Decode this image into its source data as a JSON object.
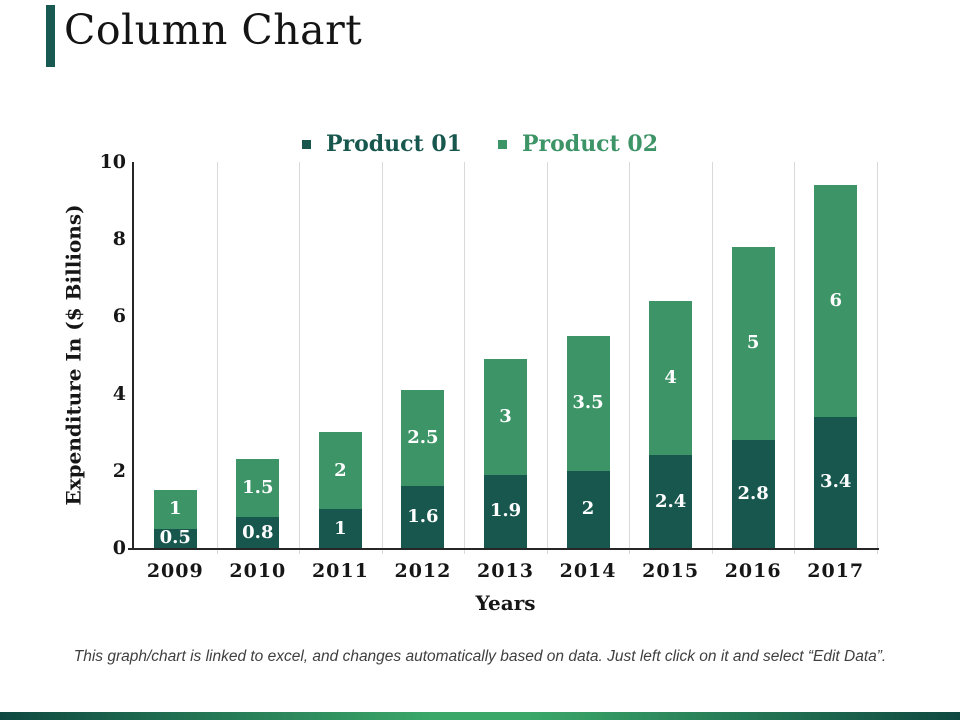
{
  "title": "Column Chart",
  "accent_color": "#185a52",
  "chart_data": {
    "type": "bar",
    "stacked": true,
    "title": "",
    "categories": [
      "2009",
      "2010",
      "2011",
      "2012",
      "2013",
      "2014",
      "2015",
      "2016",
      "2017"
    ],
    "series": [
      {
        "name": "Product 01",
        "color": "#17574e",
        "values": [
          0.5,
          0.8,
          1,
          1.6,
          1.9,
          2,
          2.4,
          2.8,
          3.4
        ]
      },
      {
        "name": "Product 02",
        "color": "#3c9467",
        "values": [
          1,
          1.5,
          2,
          2.5,
          3,
          3.5,
          4,
          5,
          6
        ]
      }
    ],
    "xlabel": "Years",
    "ylabel": "Expenditure In ($ Billions)",
    "ylim": [
      0,
      10
    ],
    "yticks": [
      0,
      2,
      4,
      6,
      8,
      10
    ],
    "grid": "vertical-only",
    "gridline_color": "#d9d9d9",
    "axis_color": "#262626",
    "data_label_color": "#ffffff",
    "legend_position": "top-center"
  },
  "footer": {
    "note": "This graph/chart is linked to excel, and changes automatically based on data. Just left click on it and select “Edit Data”."
  },
  "bottom_bar": {
    "gradient": [
      "#0f4841",
      "#3ba869",
      "#0f4841"
    ]
  }
}
